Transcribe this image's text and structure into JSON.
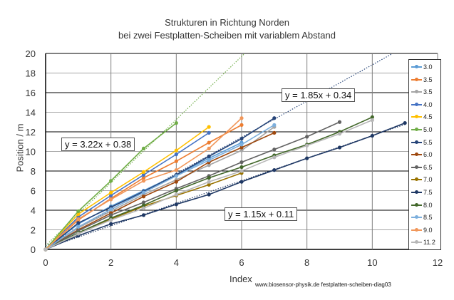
{
  "chart_data": {
    "type": "line",
    "title": "Strukturen in Richtung Norden",
    "subtitle": "bei zwei Festplatten-Scheiben mit variablem Abstand",
    "xlabel": "Index",
    "ylabel": "Position / m",
    "xlim": [
      0,
      12
    ],
    "ylim": [
      0,
      20
    ],
    "x_ticks": [
      "0",
      "2",
      "4",
      "6",
      "8",
      "10",
      "12"
    ],
    "y_ticks": [
      "0",
      "2",
      "4",
      "6",
      "8",
      "10",
      "12",
      "14",
      "16",
      "18",
      "20"
    ],
    "grid": true,
    "legend_position": "right",
    "series": [
      {
        "name": "3.0",
        "color": "#5b9bd5",
        "x": [
          0,
          1,
          2,
          3,
          4,
          5,
          6
        ],
        "values": [
          0,
          2.6,
          4.4,
          6.0,
          7.6,
          9.3,
          10.9
        ]
      },
      {
        "name": "3.5",
        "color": "#ed7d31",
        "x": [
          0,
          1,
          2,
          3,
          4,
          5,
          6
        ],
        "values": [
          0,
          3.0,
          5.2,
          7.3,
          9.0,
          10.9,
          12.7
        ]
      },
      {
        "name": "3.5",
        "color": "#a5a5a5",
        "x": [
          0,
          1,
          2,
          3,
          4,
          5,
          6,
          7
        ],
        "values": [
          0,
          2.2,
          3.9,
          5.6,
          7.1,
          8.6,
          10.1,
          12.5
        ]
      },
      {
        "name": "4.0",
        "color": "#4472c4",
        "x": [
          0,
          1,
          2,
          3,
          4,
          5
        ],
        "values": [
          0,
          3.3,
          5.5,
          7.6,
          9.7,
          11.9
        ]
      },
      {
        "name": "4.5",
        "color": "#ffc000",
        "x": [
          0,
          1,
          2,
          3,
          4,
          5
        ],
        "values": [
          0,
          3.6,
          5.8,
          7.9,
          10.1,
          12.5
        ]
      },
      {
        "name": "5.0",
        "color": "#70ad47",
        "x": [
          0,
          1,
          2,
          3,
          4
        ],
        "values": [
          0,
          3.9,
          7.0,
          10.3,
          12.9
        ]
      },
      {
        "name": "5.5",
        "color": "#264478",
        "x": [
          0,
          1,
          2,
          3,
          4,
          5,
          6,
          7
        ],
        "values": [
          0,
          2.7,
          4.3,
          5.9,
          7.6,
          9.5,
          11.3,
          13.4
        ]
      },
      {
        "name": "6.0",
        "color": "#9e480e",
        "x": [
          0,
          1,
          2,
          3,
          4,
          5,
          6,
          7
        ],
        "values": [
          0,
          2.0,
          3.7,
          5.4,
          6.9,
          8.9,
          10.4,
          11.9
        ]
      },
      {
        "name": "6.5",
        "color": "#636363",
        "x": [
          0,
          1,
          2,
          3,
          4,
          5,
          6,
          7,
          8,
          9
        ],
        "values": [
          0,
          1.9,
          3.5,
          4.8,
          6.2,
          7.5,
          8.9,
          10.2,
          11.5,
          13.0
        ]
      },
      {
        "name": "7.0",
        "color": "#997300",
        "x": [
          0,
          1,
          2,
          3,
          4,
          5,
          6
        ],
        "values": [
          0,
          1.6,
          3.1,
          4.4,
          5.5,
          6.6,
          7.8
        ]
      },
      {
        "name": "7.5",
        "color": "#1f3864",
        "x": [
          0,
          1,
          2,
          3,
          4,
          5,
          6,
          7,
          8,
          9,
          10,
          11
        ],
        "values": [
          0,
          1.4,
          2.6,
          3.5,
          4.6,
          5.6,
          6.9,
          8.1,
          9.3,
          10.4,
          11.6,
          12.9
        ]
      },
      {
        "name": "8.0",
        "color": "#43682b",
        "x": [
          0,
          1,
          2,
          3,
          4,
          5,
          6,
          7,
          8,
          9,
          10
        ],
        "values": [
          0,
          1.7,
          3.2,
          4.5,
          6.0,
          7.3,
          8.4,
          9.6,
          10.7,
          12.0,
          13.5
        ]
      },
      {
        "name": "8.5",
        "color": "#7cafdd",
        "x": [
          0,
          1,
          2,
          3,
          4,
          5,
          6,
          7
        ],
        "values": [
          0,
          2.3,
          4.1,
          5.8,
          7.5,
          9.1,
          10.7,
          12.7
        ]
      },
      {
        "name": "9.0",
        "color": "#f1975a",
        "x": [
          0,
          1,
          2,
          3,
          4,
          5,
          6
        ],
        "values": [
          0,
          3.1,
          5.1,
          7.0,
          8.1,
          10.3,
          13.4
        ]
      },
      {
        "name": "11.2",
        "color": "#b7b7b7",
        "x": [
          0,
          1,
          2,
          3,
          4,
          5,
          6,
          7,
          8,
          9,
          10
        ],
        "values": [
          0,
          1.6,
          3.0,
          4.2,
          5.6,
          6.9,
          8.0,
          9.4,
          10.6,
          11.8,
          13.2
        ]
      }
    ],
    "trendlines": [
      {
        "label": "y = 3.22x + 0.38",
        "slope": 3.22,
        "intercept": 0.38,
        "color": "#70ad47",
        "x_end": 6.1
      },
      {
        "label": "y = 1.85x + 0.34",
        "slope": 1.85,
        "intercept": 0.34,
        "color": "#264478",
        "x_end": 10.6
      },
      {
        "label": "y = 1.15x + 0.11",
        "slope": 1.15,
        "intercept": 0.11,
        "color": "#1f3864",
        "x_end": 11.0
      }
    ],
    "annotations": [
      "y = 3.22x + 0.38",
      "y = 1.85x + 0.34",
      "y = 1.15x + 0.11"
    ]
  },
  "labels": {
    "title": "Strukturen in Richtung Norden",
    "subtitle": "bei zwei Festplatten-Scheiben mit variablem Abstand",
    "xlabel": "Index",
    "ylabel": "Position / m",
    "credit": "www.biosensor-physik.de  festplatten-scheiben-diag03",
    "eq1": "y = 3.22x + 0.38",
    "eq2": "y = 1.85x + 0.34",
    "eq3": "y = 1.15x + 0.11"
  }
}
